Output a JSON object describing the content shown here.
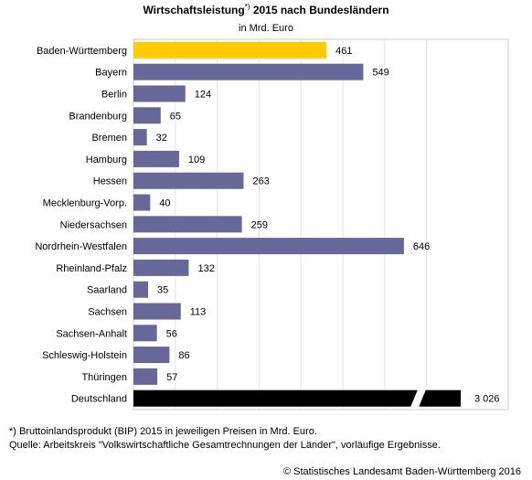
{
  "header": {
    "title": "Wirtschaftsleistung",
    "title_mark": "*)",
    "title_rest": " 2015 nach Bundesländern",
    "unit": "in Mrd. Euro"
  },
  "chart_data": {
    "type": "bar",
    "orientation": "horizontal",
    "title": "Wirtschaftsleistung*) 2015 nach Bundesländern",
    "subtitle": "in Mrd. Euro",
    "categories": [
      "Baden-Württemberg",
      "Bayern",
      "Berlin",
      "Brandenburg",
      "Bremen",
      "Hamburg",
      "Hessen",
      "Mecklenburg-Vorp.",
      "Niedersachsen",
      "Nordrhein-Westfalen",
      "Rheinland-Pfalz",
      "Saarland",
      "Sachsen",
      "Sachsen-Anhalt",
      "Schleswig-Holstein",
      "Thüringen",
      "Deutschland"
    ],
    "values": [
      461,
      549,
      124,
      65,
      32,
      109,
      263,
      40,
      259,
      646,
      132,
      35,
      113,
      56,
      86,
      57,
      3026
    ],
    "value_labels": [
      "461",
      "549",
      "124",
      "65",
      "32",
      "109",
      "263",
      "40",
      "259",
      "646",
      "132",
      "35",
      "113",
      "56",
      "86",
      "57",
      "3 026"
    ],
    "highlight_index": 0,
    "total_index": 16,
    "broken_axis_index": 16,
    "xlim": [
      0,
      700
    ],
    "colors": {
      "default": "#67679a",
      "highlight": "#ffcc00",
      "total": "#000000",
      "frame": "#cccccc",
      "grid": "#e4e4e4"
    },
    "grid": true,
    "legend": "none"
  },
  "footer": {
    "note": "*) Bruttoinlandsprodukt (BIP) 2015 in jeweiligen Preisen in Mrd. Euro.",
    "source": "Quelle: Arbeitskreis \"Volkswirtschaftliche Gesamtrechnungen der Länder\", vorläufige Ergebnisse.",
    "copyright": "© Statistisches Landesamt Baden-Württemberg 2016"
  }
}
